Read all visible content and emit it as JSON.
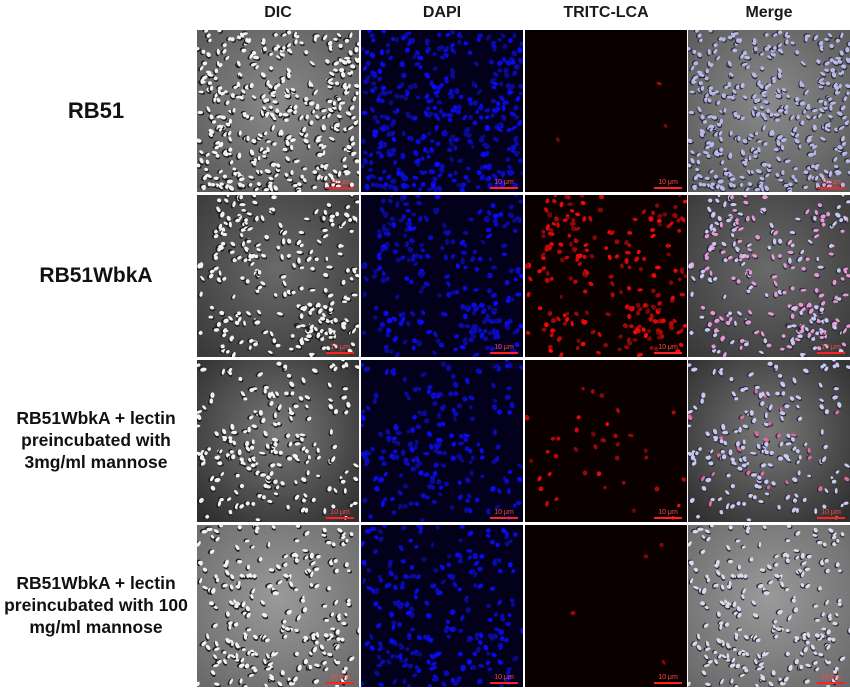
{
  "columns": [
    {
      "label": "DIC"
    },
    {
      "label": "DAPI"
    },
    {
      "label": "TRITC-LCA"
    },
    {
      "label": "Merge"
    }
  ],
  "rows": [
    {
      "label": "RB51"
    },
    {
      "label": "RB51WbkA"
    },
    {
      "label": "RB51WbkA + lectin preincubated with 3mg/ml mannose"
    },
    {
      "label": "RB51WbkA + lectin preincubated with 100 mg/ml mannose"
    }
  ],
  "scale_bar": {
    "label": "10 μm"
  },
  "colors": {
    "dapi": "#1a1aff",
    "tritc": "#ff2020",
    "dic_dark": "#3a3a3a",
    "scale_bar": "#ff2020"
  }
}
